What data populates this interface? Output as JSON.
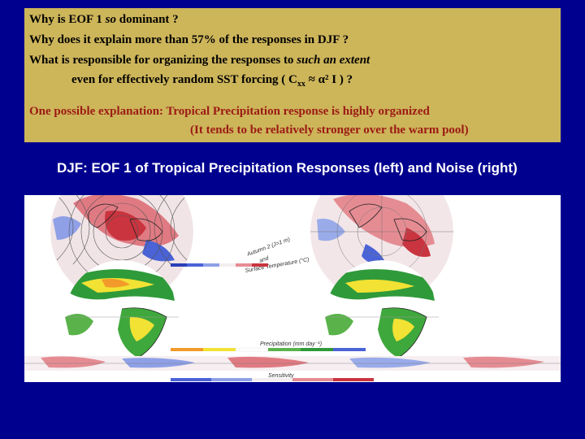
{
  "questions": {
    "line1_pre": "Why is EOF 1 ",
    "line1_em": "so",
    "line1_post": " dominant ?",
    "line2": "Why does it explain more than 57% of the responses in DJF ?",
    "line3_pre": "What is responsible for organizing the responses to ",
    "line3_em": "such an extent",
    "line4_pre": "even for effectively random SST forcing ( C",
    "line4_sub": "xx",
    "line4_post": " ≈  α² I ) ?"
  },
  "explanation": {
    "line1": "One possible explanation: Tropical Precipitation response is highly organized",
    "line2": "(It tends to be relatively stronger over the warm pool)"
  },
  "heading": "DJF: EOF 1 of Tropical Precipitation  Responses (left) and Noise  (right)",
  "figure": {
    "caption_temp_1": "Autumn 2 (J=1 m)",
    "caption_temp_2": "and",
    "caption_temp_3": "Surface Temperature (°C)",
    "caption_precip": "Precipitation (mm day⁻¹)",
    "caption_sens": "Sensitivity",
    "colors": {
      "red": "#e4606a",
      "blue": "#4a63d6",
      "green": "#2f9a3a",
      "yellow": "#f2e234",
      "orange": "#f29a2a"
    }
  }
}
